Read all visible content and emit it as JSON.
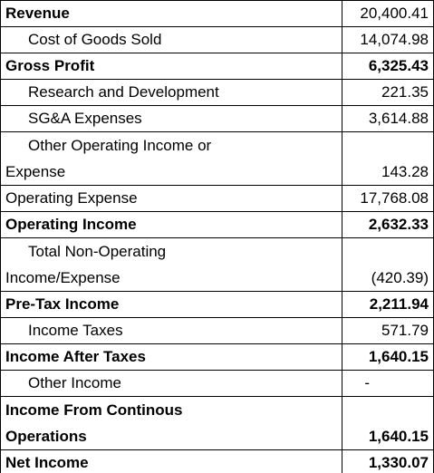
{
  "table": {
    "rows": [
      [
        "Revenue",
        "20,400.41"
      ],
      [
        "Cost of Goods Sold",
        "14,074.98"
      ],
      [
        "Gross Profit",
        "6,325.43"
      ],
      [
        "Research and Development",
        "221.35"
      ],
      [
        "SG&A Expenses",
        "3,614.88"
      ],
      [
        [
          "Other Operating Income or",
          "Expense"
        ],
        "143.28"
      ],
      [
        "Operating Expense",
        "17,768.08"
      ],
      [
        "Operating Income",
        "2,632.33"
      ],
      [
        [
          "Total Non-Operating",
          "Income/Expense"
        ],
        "(420.39)"
      ],
      [
        "Pre-Tax Income",
        "2,211.94"
      ],
      [
        "Income Taxes",
        "571.79"
      ],
      [
        "Income After Taxes",
        "1,640.15"
      ],
      [
        "Other Income",
        "-"
      ],
      [
        [
          "Income From Continous",
          "Operations"
        ],
        "1,640.15"
      ],
      [
        "Net Income",
        "1,330.07"
      ]
    ]
  }
}
